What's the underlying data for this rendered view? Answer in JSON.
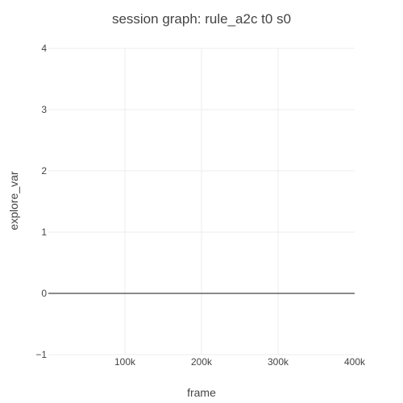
{
  "chart_data": {
    "type": "line",
    "title": "session graph: rule_a2c t0 s0",
    "xlabel": "frame",
    "ylabel": "explore_var",
    "xlim": [
      0,
      400000
    ],
    "ylim": [
      -1,
      4
    ],
    "x_ticks": [
      {
        "value": 100000,
        "label": "100k"
      },
      {
        "value": 200000,
        "label": "200k"
      },
      {
        "value": 300000,
        "label": "300k"
      },
      {
        "value": 400000,
        "label": "400k"
      }
    ],
    "y_ticks": [
      {
        "value": -1,
        "label": "−1"
      },
      {
        "value": 0,
        "label": "0"
      },
      {
        "value": 1,
        "label": "1"
      },
      {
        "value": 2,
        "label": "2"
      },
      {
        "value": 3,
        "label": "3"
      },
      {
        "value": 4,
        "label": "4"
      }
    ],
    "series": [
      {
        "x": [
          0,
          400000
        ],
        "y": [
          0,
          0
        ],
        "color": "#444444"
      }
    ],
    "grid": true,
    "colors": {
      "grid": "#eeeeee",
      "text": "#444444",
      "line": "#444444",
      "background": "#ffffff"
    }
  }
}
